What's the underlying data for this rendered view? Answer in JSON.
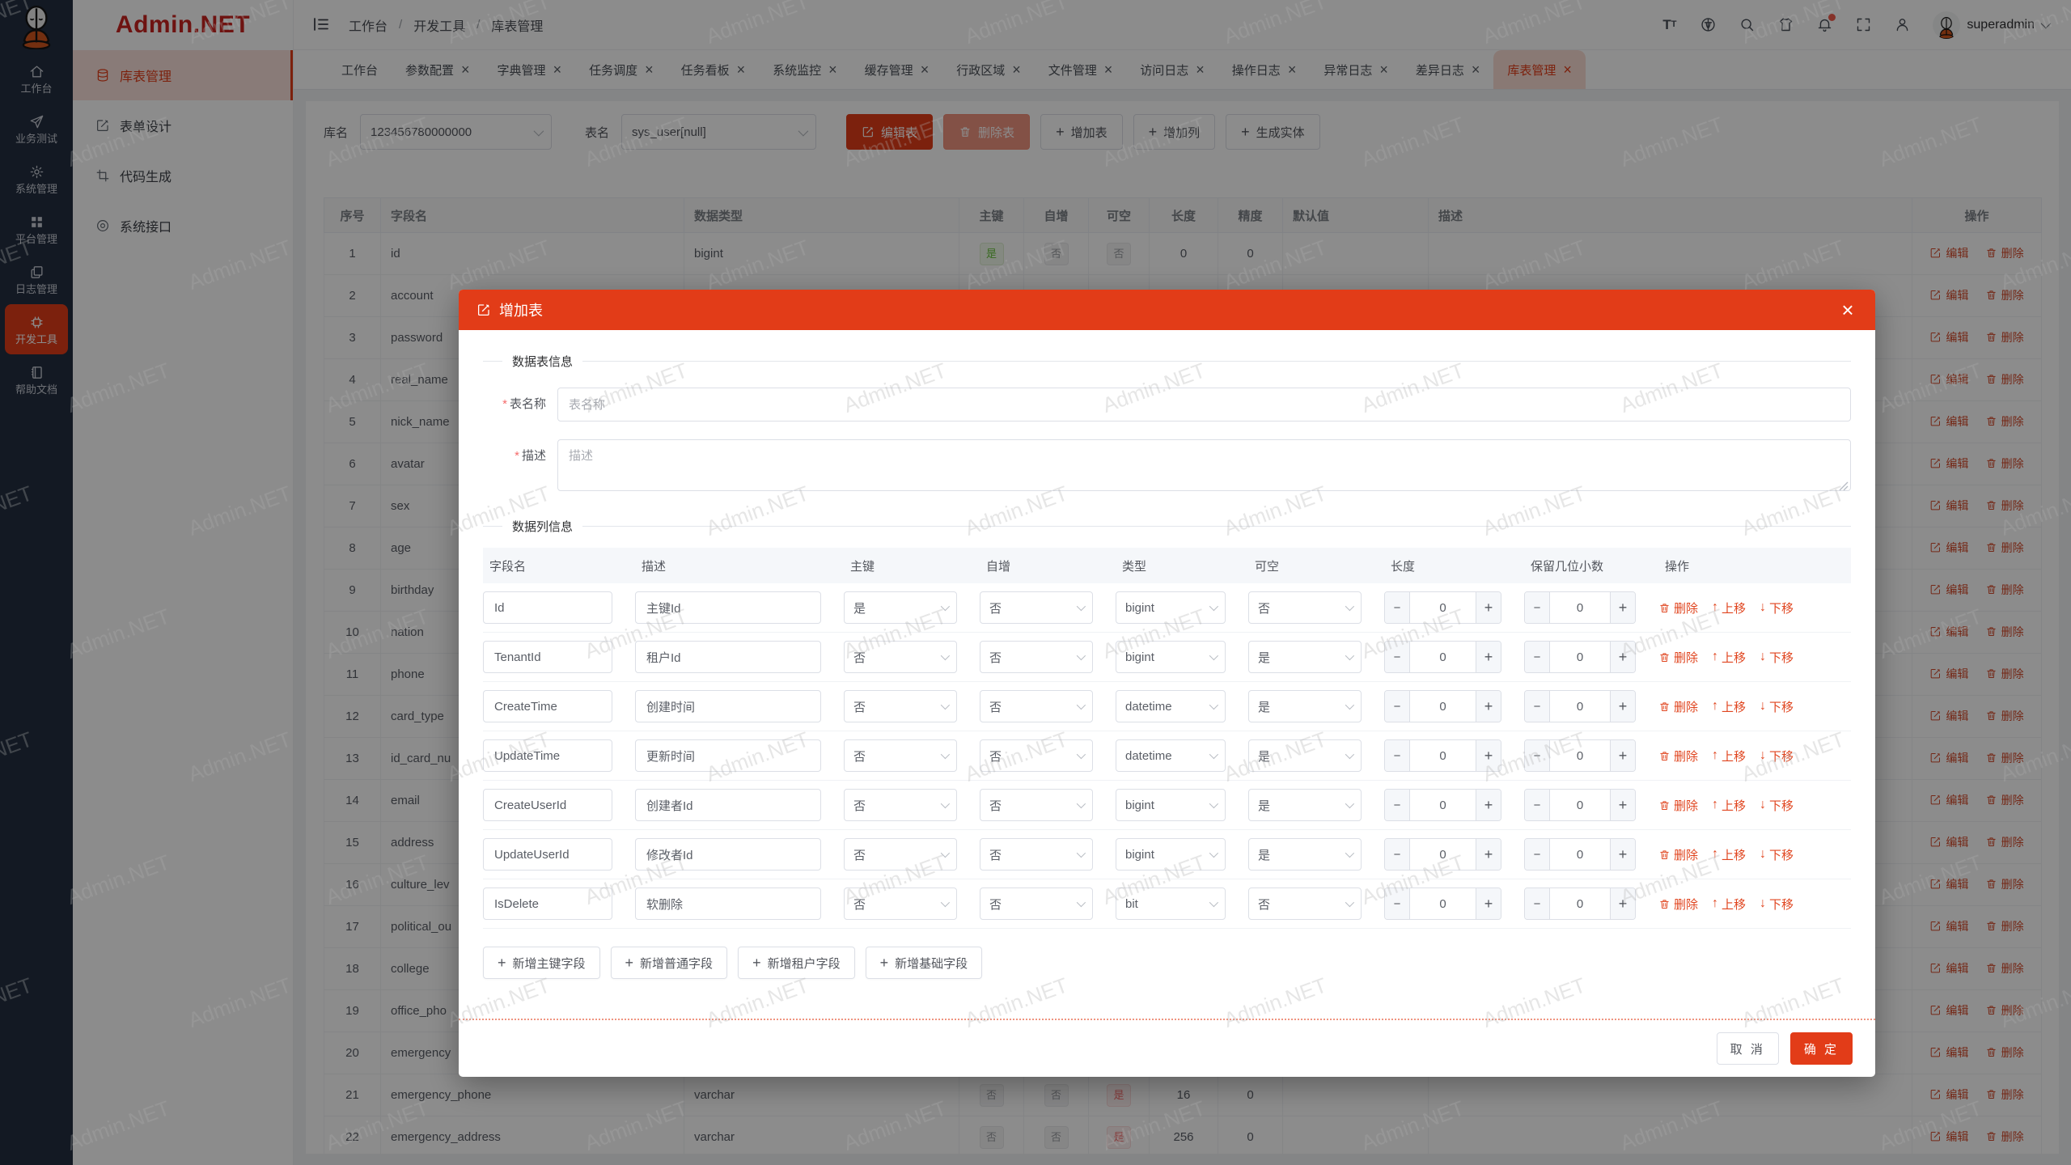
{
  "watermark": "Admin.NET",
  "brand": {
    "logo": "Admin.NET",
    "primary_color": "#e23c18"
  },
  "rail": {
    "items": [
      {
        "label": "工作台"
      },
      {
        "label": "业务测试"
      },
      {
        "label": "系统管理"
      },
      {
        "label": "平台管理"
      },
      {
        "label": "日志管理"
      },
      {
        "label": "开发工具",
        "cls": "active"
      },
      {
        "label": "帮助文档"
      }
    ]
  },
  "sidebar": {
    "items": [
      {
        "label": "库表管理",
        "cls": "active"
      },
      {
        "label": "表单设计"
      },
      {
        "label": "代码生成"
      },
      {
        "label": "系统接口"
      }
    ]
  },
  "topbar": {
    "breadcrumb": [
      "工作台",
      "开发工具",
      "库表管理"
    ],
    "username": "superadmin"
  },
  "tabs": [
    {
      "label": "工作台",
      "closable": false
    },
    {
      "label": "参数配置",
      "closable": true
    },
    {
      "label": "字典管理",
      "closable": true
    },
    {
      "label": "任务调度",
      "closable": true
    },
    {
      "label": "任务看板",
      "closable": true
    },
    {
      "label": "系统监控",
      "closable": true
    },
    {
      "label": "缓存管理",
      "closable": true
    },
    {
      "label": "行政区域",
      "closable": true
    },
    {
      "label": "文件管理",
      "closable": true
    },
    {
      "label": "访问日志",
      "closable": true
    },
    {
      "label": "操作日志",
      "closable": true
    },
    {
      "label": "异常日志",
      "closable": true
    },
    {
      "label": "差异日志",
      "closable": true
    },
    {
      "label": "库表管理",
      "closable": true,
      "cls": "active"
    }
  ],
  "toolbar": {
    "db_label": "库名",
    "db_value": "123456780000000",
    "table_label": "表名",
    "table_value": "sys_user[null]",
    "buttons": {
      "edit_table": "编辑表",
      "delete_table": "删除表",
      "add_table": "增加表",
      "add_column": "增加列",
      "gen_entity": "生成实体"
    }
  },
  "table": {
    "columns": [
      "序号",
      "字段名",
      "数据类型",
      "主键",
      "自增",
      "可空",
      "长度",
      "精度",
      "默认值",
      "描述",
      "操作"
    ],
    "row_actions": {
      "edit": "编辑",
      "delete": "删除"
    },
    "rows": [
      {
        "no": "1",
        "name": "id",
        "type": "bigint",
        "pk": "是",
        "pk_class": "green",
        "ai": "否",
        "ai_class": "gray",
        "nul": "否",
        "nul_class": "gray",
        "len": "0",
        "prec": "0",
        "def": "",
        "desc": ""
      },
      {
        "no": "2",
        "name": "account",
        "type": "",
        "pk": "",
        "ai": "",
        "nul": "",
        "len": "",
        "prec": "",
        "def": "",
        "desc": ""
      },
      {
        "no": "3",
        "name": "password",
        "type": "",
        "pk": "",
        "ai": "",
        "nul": "",
        "len": "",
        "prec": "",
        "def": "",
        "desc": ""
      },
      {
        "no": "4",
        "name": "real_name",
        "type": "",
        "pk": "",
        "ai": "",
        "nul": "",
        "len": "",
        "prec": "",
        "def": "",
        "desc": ""
      },
      {
        "no": "5",
        "name": "nick_name",
        "type": "",
        "pk": "",
        "ai": "",
        "nul": "",
        "len": "",
        "prec": "",
        "def": "",
        "desc": ""
      },
      {
        "no": "6",
        "name": "avatar",
        "type": "",
        "pk": "",
        "ai": "",
        "nul": "",
        "len": "",
        "prec": "",
        "def": "",
        "desc": ""
      },
      {
        "no": "7",
        "name": "sex",
        "type": "",
        "pk": "",
        "ai": "",
        "nul": "",
        "len": "",
        "prec": "",
        "def": "",
        "desc": ""
      },
      {
        "no": "8",
        "name": "age",
        "type": "",
        "pk": "",
        "ai": "",
        "nul": "",
        "len": "",
        "prec": "",
        "def": "",
        "desc": ""
      },
      {
        "no": "9",
        "name": "birthday",
        "type": "",
        "pk": "",
        "ai": "",
        "nul": "",
        "len": "",
        "prec": "",
        "def": "",
        "desc": ""
      },
      {
        "no": "10",
        "name": "nation",
        "type": "",
        "pk": "",
        "ai": "",
        "nul": "",
        "len": "",
        "prec": "",
        "def": "",
        "desc": ""
      },
      {
        "no": "11",
        "name": "phone",
        "type": "",
        "pk": "",
        "ai": "",
        "nul": "",
        "len": "",
        "prec": "",
        "def": "",
        "desc": ""
      },
      {
        "no": "12",
        "name": "card_type",
        "type": "",
        "pk": "",
        "ai": "",
        "nul": "",
        "len": "",
        "prec": "",
        "def": "",
        "desc": ""
      },
      {
        "no": "13",
        "name": "id_card_nu",
        "type": "",
        "pk": "",
        "ai": "",
        "nul": "",
        "len": "",
        "prec": "",
        "def": "",
        "desc": ""
      },
      {
        "no": "14",
        "name": "email",
        "type": "",
        "pk": "",
        "ai": "",
        "nul": "",
        "len": "",
        "prec": "",
        "def": "",
        "desc": ""
      },
      {
        "no": "15",
        "name": "address",
        "type": "",
        "pk": "",
        "ai": "",
        "nul": "",
        "len": "",
        "prec": "",
        "def": "",
        "desc": ""
      },
      {
        "no": "16",
        "name": "culture_lev",
        "type": "",
        "pk": "",
        "ai": "",
        "nul": "",
        "len": "",
        "prec": "",
        "def": "",
        "desc": ""
      },
      {
        "no": "17",
        "name": "political_ou",
        "type": "",
        "pk": "",
        "ai": "",
        "nul": "",
        "len": "",
        "prec": "",
        "def": "",
        "desc": ""
      },
      {
        "no": "18",
        "name": "college",
        "type": "",
        "pk": "",
        "ai": "",
        "nul": "",
        "len": "",
        "prec": "",
        "def": "",
        "desc": ""
      },
      {
        "no": "19",
        "name": "office_pho",
        "type": "",
        "pk": "",
        "ai": "",
        "nul": "",
        "len": "",
        "prec": "",
        "def": "",
        "desc": ""
      },
      {
        "no": "20",
        "name": "emergency",
        "type": "",
        "pk": "",
        "ai": "",
        "nul": "",
        "len": "",
        "prec": "",
        "def": "",
        "desc": ""
      },
      {
        "no": "21",
        "name": "emergency_phone",
        "type": "varchar",
        "pk": "否",
        "pk_class": "gray",
        "ai": "否",
        "ai_class": "gray",
        "nul": "是",
        "nul_class": "red",
        "len": "16",
        "prec": "0",
        "def": "",
        "desc": ""
      },
      {
        "no": "22",
        "name": "emergency_address",
        "type": "varchar",
        "pk": "否",
        "pk_class": "gray",
        "ai": "否",
        "ai_class": "gray",
        "nul": "是",
        "nul_class": "red",
        "len": "256",
        "prec": "0",
        "def": "",
        "desc": ""
      }
    ]
  },
  "modal": {
    "title": "增加表",
    "section_table_info": "数据表信息",
    "section_column_info": "数据列信息",
    "fields": {
      "table_name_label": "表名称",
      "table_name_placeholder": "表名称",
      "desc_label": "描述",
      "desc_placeholder": "描述"
    },
    "columns_table": {
      "headers": [
        "字段名",
        "描述",
        "主键",
        "自增",
        "类型",
        "可空",
        "长度",
        "保留几位小数",
        "操作"
      ],
      "row_actions": {
        "delete": "删除",
        "move_up": "上移",
        "move_down": "下移"
      },
      "rows": [
        {
          "name": "Id",
          "desc": "主键Id",
          "pk": "是",
          "ai": "否",
          "type": "bigint",
          "nul": "否",
          "len": "0",
          "dec": "0"
        },
        {
          "name": "TenantId",
          "desc": "租户Id",
          "pk": "否",
          "ai": "否",
          "type": "bigint",
          "nul": "是",
          "len": "0",
          "dec": "0"
        },
        {
          "name": "CreateTime",
          "desc": "创建时间",
          "pk": "否",
          "ai": "否",
          "type": "datetime",
          "nul": "是",
          "len": "0",
          "dec": "0"
        },
        {
          "name": "UpdateTime",
          "desc": "更新时间",
          "pk": "否",
          "ai": "否",
          "type": "datetime",
          "nul": "是",
          "len": "0",
          "dec": "0"
        },
        {
          "name": "CreateUserId",
          "desc": "创建者Id",
          "pk": "否",
          "ai": "否",
          "type": "bigint",
          "nul": "是",
          "len": "0",
          "dec": "0"
        },
        {
          "name": "UpdateUserId",
          "desc": "修改者Id",
          "pk": "否",
          "ai": "否",
          "type": "bigint",
          "nul": "是",
          "len": "0",
          "dec": "0"
        },
        {
          "name": "IsDelete",
          "desc": "软删除",
          "pk": "否",
          "ai": "否",
          "type": "bit",
          "nul": "否",
          "len": "0",
          "dec": "0"
        }
      ]
    },
    "add_buttons": [
      {
        "label": "新增主键字段"
      },
      {
        "label": "新增普通字段"
      },
      {
        "label": "新增租户字段"
      },
      {
        "label": "新增基础字段"
      }
    ],
    "footer": {
      "cancel": "取 消",
      "confirm": "确 定"
    }
  }
}
